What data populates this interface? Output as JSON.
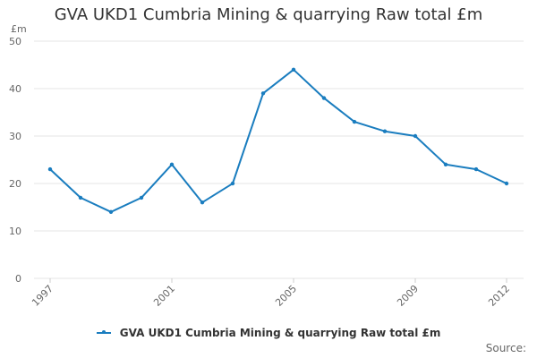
{
  "colors": {
    "series": "#1a7dbf"
  },
  "credits": "Source:",
  "chart_data": {
    "type": "line",
    "title": "GVA UKD1 Cumbria Mining & quarrying Raw total £m",
    "ylabel": "£m",
    "xlabel": "",
    "x": [
      1997,
      1998,
      1999,
      2000,
      2001,
      2002,
      2003,
      2004,
      2005,
      2006,
      2007,
      2008,
      2009,
      2010,
      2011,
      2012
    ],
    "x_tick_labels": [
      "1997",
      "2001",
      "2005",
      "2009",
      "2012"
    ],
    "x_tick_values": [
      1997,
      2001,
      2005,
      2009,
      2012
    ],
    "y_ticks": [
      0,
      10,
      20,
      30,
      40,
      50
    ],
    "ylim": [
      0,
      50
    ],
    "xlim": [
      1997,
      2012
    ],
    "grid": true,
    "legend_position": "bottom",
    "series": [
      {
        "name": "GVA UKD1 Cumbria Mining & quarrying Raw total £m",
        "values": [
          23,
          17,
          14,
          17,
          24,
          16,
          20,
          39,
          44,
          38,
          33,
          31,
          30,
          24,
          23,
          20
        ]
      }
    ]
  }
}
